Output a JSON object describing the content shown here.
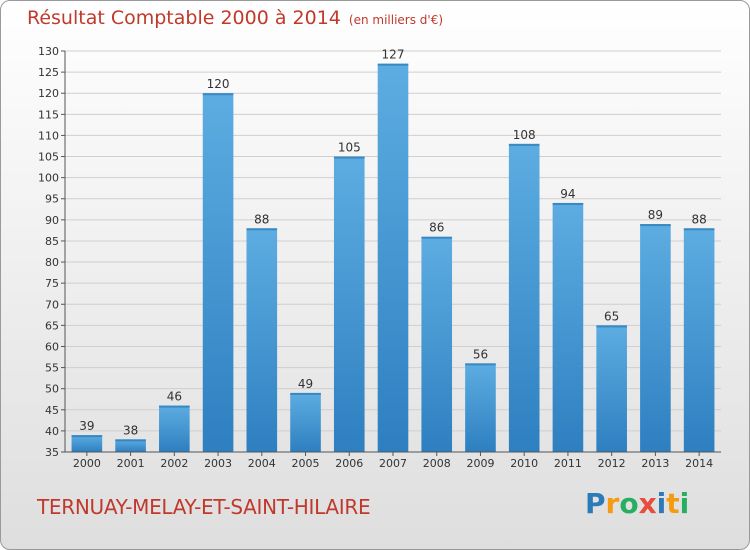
{
  "header": {
    "title": "Résultat Comptable 2000 à 2014",
    "subtitle": "(en milliers d'€)"
  },
  "footer": {
    "commune": "TERNUAY-MELAY-ET-SAINT-HILAIRE",
    "logo_letters": [
      "P",
      "r",
      "o",
      "x",
      "i",
      "t",
      "i"
    ],
    "logo_colors": [
      "#2b7bb9",
      "#f39c12",
      "#27ae60",
      "#e74c3c",
      "#2b7bb9",
      "#f39c12",
      "#27ae60"
    ]
  },
  "colors": {
    "bar_top": "#5dade2",
    "bar_bottom": "#2e7fc0",
    "title": "#c0392b",
    "grid": "#cfcfcf"
  },
  "chart_data": {
    "type": "bar",
    "title": "Résultat Comptable 2000 à 2014",
    "xlabel": "",
    "ylabel": "en milliers d'€",
    "categories": [
      "2000",
      "2001",
      "2002",
      "2003",
      "2004",
      "2005",
      "2006",
      "2007",
      "2008",
      "2009",
      "2010",
      "2011",
      "2012",
      "2013",
      "2014"
    ],
    "values": [
      39,
      38,
      46,
      120,
      88,
      49,
      105,
      127,
      86,
      56,
      108,
      94,
      65,
      89,
      88
    ],
    "ylim": [
      35,
      130
    ],
    "ytick_step": 5,
    "grid": true
  }
}
